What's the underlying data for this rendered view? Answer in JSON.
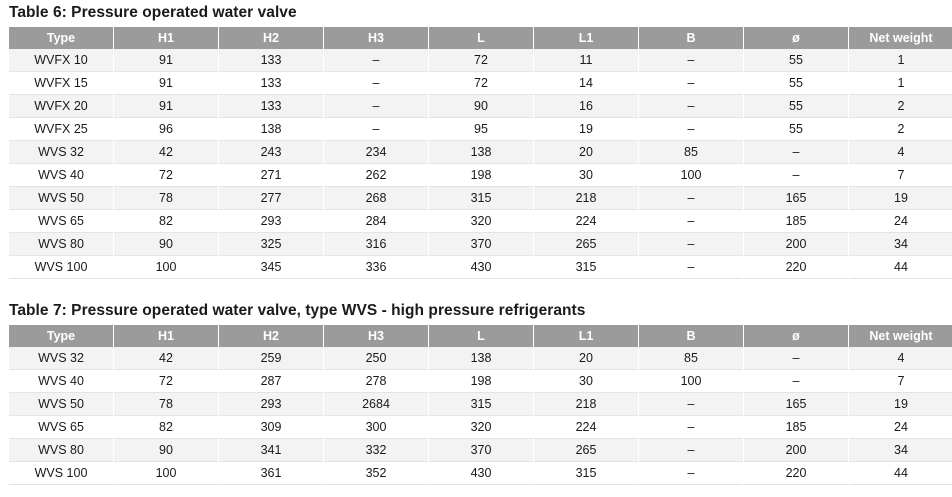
{
  "table6": {
    "title": "Table 6: Pressure operated water valve",
    "headers": [
      "Type",
      "H1",
      "H2",
      "H3",
      "L",
      "L1",
      "B",
      "ø",
      "Net weight"
    ],
    "rows": [
      [
        "WVFX 10",
        "91",
        "133",
        "–",
        "72",
        "11",
        "–",
        "55",
        "1"
      ],
      [
        "WVFX 15",
        "91",
        "133",
        "–",
        "72",
        "14",
        "–",
        "55",
        "1"
      ],
      [
        "WVFX 20",
        "91",
        "133",
        "–",
        "90",
        "16",
        "–",
        "55",
        "2"
      ],
      [
        "WVFX 25",
        "96",
        "138",
        "–",
        "95",
        "19",
        "–",
        "55",
        "2"
      ],
      [
        "WVS 32",
        "42",
        "243",
        "234",
        "138",
        "20",
        "85",
        "–",
        "4"
      ],
      [
        "WVS 40",
        "72",
        "271",
        "262",
        "198",
        "30",
        "100",
        "–",
        "7"
      ],
      [
        "WVS 50",
        "78",
        "277",
        "268",
        "315",
        "218",
        "–",
        "165",
        "19"
      ],
      [
        "WVS 65",
        "82",
        "293",
        "284",
        "320",
        "224",
        "–",
        "185",
        "24"
      ],
      [
        "WVS 80",
        "90",
        "325",
        "316",
        "370",
        "265",
        "–",
        "200",
        "34"
      ],
      [
        "WVS 100",
        "100",
        "345",
        "336",
        "430",
        "315",
        "–",
        "220",
        "44"
      ]
    ]
  },
  "table7": {
    "title": "Table 7: Pressure operated water valve, type WVS - high pressure refrigerants",
    "headers": [
      "Type",
      "H1",
      "H2",
      "H3",
      "L",
      "L1",
      "B",
      "ø",
      "Net weight"
    ],
    "rows": [
      [
        "WVS 32",
        "42",
        "259",
        "250",
        "138",
        "20",
        "85",
        "–",
        "4"
      ],
      [
        "WVS 40",
        "72",
        "287",
        "278",
        "198",
        "30",
        "100",
        "–",
        "7"
      ],
      [
        "WVS 50",
        "78",
        "293",
        "2684",
        "315",
        "218",
        "–",
        "165",
        "19"
      ],
      [
        "WVS 65",
        "82",
        "309",
        "300",
        "320",
        "224",
        "–",
        "185",
        "24"
      ],
      [
        "WVS 80",
        "90",
        "341",
        "332",
        "370",
        "265",
        "–",
        "200",
        "34"
      ],
      [
        "WVS 100",
        "100",
        "361",
        "352",
        "430",
        "315",
        "–",
        "220",
        "44"
      ]
    ]
  }
}
